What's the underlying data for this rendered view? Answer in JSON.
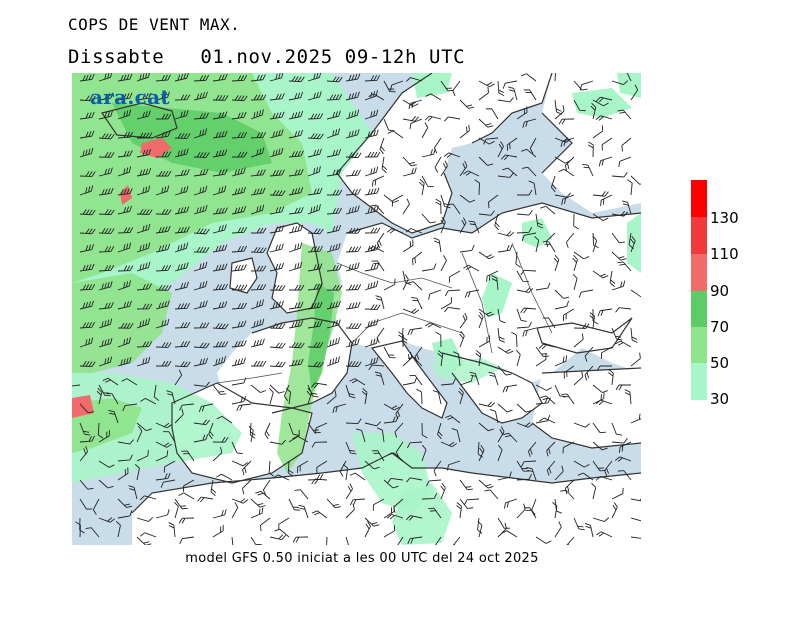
{
  "header": {
    "title": "COPS DE VENT MAX.",
    "day": "Dissabte",
    "datetime": "01.nov.2025 09-12h UTC"
  },
  "logo": {
    "text": "ara.cat"
  },
  "footer": {
    "caption": "model GFS 0.50 iniciat a les 00 UTC del 24 oct 2025"
  },
  "legend": {
    "labels": [
      "30",
      "50",
      "70",
      "90",
      "110",
      "130"
    ],
    "colors": [
      "#a8f5c8",
      "#8fe38a",
      "#5ccc66",
      "#f06b6b",
      "#f23a3a",
      "#ff0000"
    ]
  },
  "map_colors": {
    "sea": "#c8dcea",
    "land": "#ffffff",
    "coast": "#333333",
    "barb": "#222222"
  }
}
